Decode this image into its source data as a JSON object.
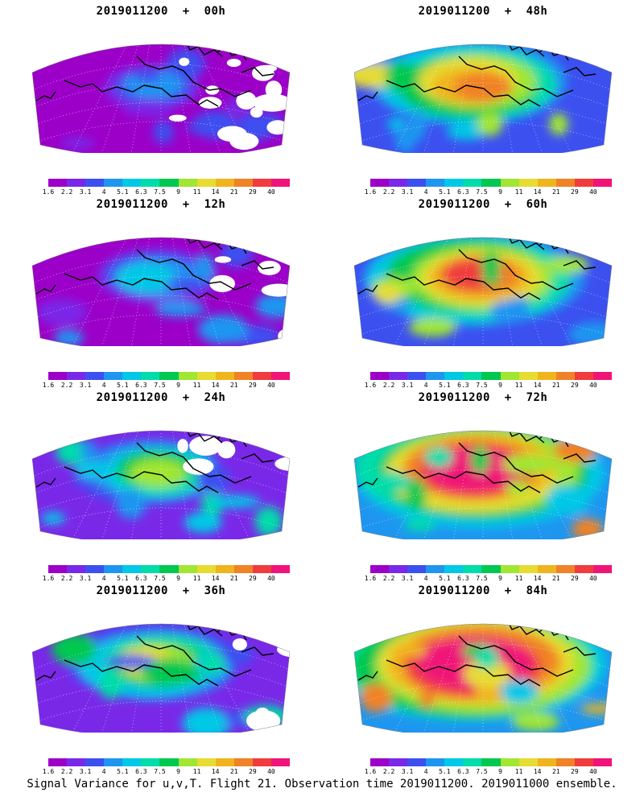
{
  "panels": [
    {
      "title": "2019011200  +  00h",
      "lead_hours": 0
    },
    {
      "title": "2019011200  +  48h",
      "lead_hours": 48
    },
    {
      "title": "2019011200  +  12h",
      "lead_hours": 12
    },
    {
      "title": "2019011200  +  60h",
      "lead_hours": 60
    },
    {
      "title": "2019011200  +  24h",
      "lead_hours": 24
    },
    {
      "title": "2019011200  +  72h",
      "lead_hours": 72
    },
    {
      "title": "2019011200  +  36h",
      "lead_hours": 36
    },
    {
      "title": "2019011200  +  84h",
      "lead_hours": 84
    }
  ],
  "colorbar": {
    "labels": [
      "1.6",
      "2.2",
      "3.1",
      "4",
      "5.1",
      "6.3",
      "7.5",
      "9",
      "11",
      "14",
      "21",
      "29",
      "40"
    ],
    "colors": [
      "#9c00c8",
      "#7a28e8",
      "#3c50f0",
      "#1e96f0",
      "#00c8e6",
      "#00dcaa",
      "#00c850",
      "#a0e632",
      "#e6dc32",
      "#f0b41e",
      "#f08228",
      "#f03c3c",
      "#f01478"
    ]
  },
  "map_colors": {
    "coast": "#000000",
    "land_mask": "#ffffff",
    "graticule": "#ffffff"
  },
  "footer": "Signal Variance for u,v,T. Flight 21. Observation time 2019011200. 2019011000 ensemble."
}
